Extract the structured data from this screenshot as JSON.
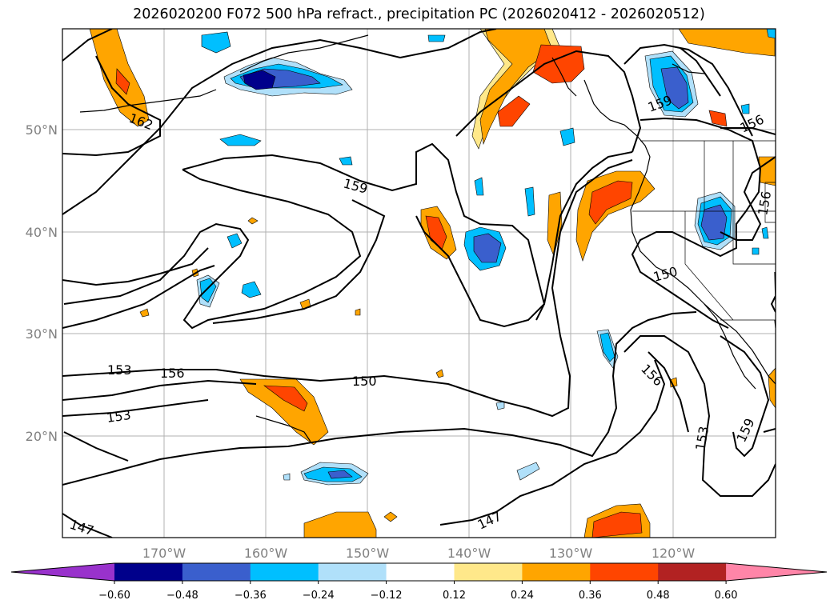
{
  "title": "2026020200 F072 500 hPa refract., precipitation PC (2026020412 - 2026020512)",
  "lat_labels": [
    "50°N",
    "40°N",
    "30°N",
    "20°N"
  ],
  "lon_labels": [
    "170°W",
    "160°W",
    "150°W",
    "140°W",
    "130°W",
    "120°W"
  ],
  "contour_labels": [
    "162",
    "159",
    "159",
    "156",
    "150",
    "153",
    "156",
    "150",
    "153",
    "153",
    "156",
    "159",
    "147",
    "147",
    "156"
  ],
  "colorbar": {
    "ticks": [
      "−0.60",
      "−0.48",
      "−0.36",
      "−0.24",
      "−0.12",
      "0.12",
      "0.24",
      "0.36",
      "0.48",
      "0.60"
    ],
    "colors": [
      "#9932cc",
      "#00008b",
      "#3a5fcd",
      "#00bfff",
      "#b0e0fa",
      "#ffffff",
      "#ffe88a",
      "#ffa500",
      "#ff4500",
      "#b22222",
      "#ff85a8"
    ]
  }
}
